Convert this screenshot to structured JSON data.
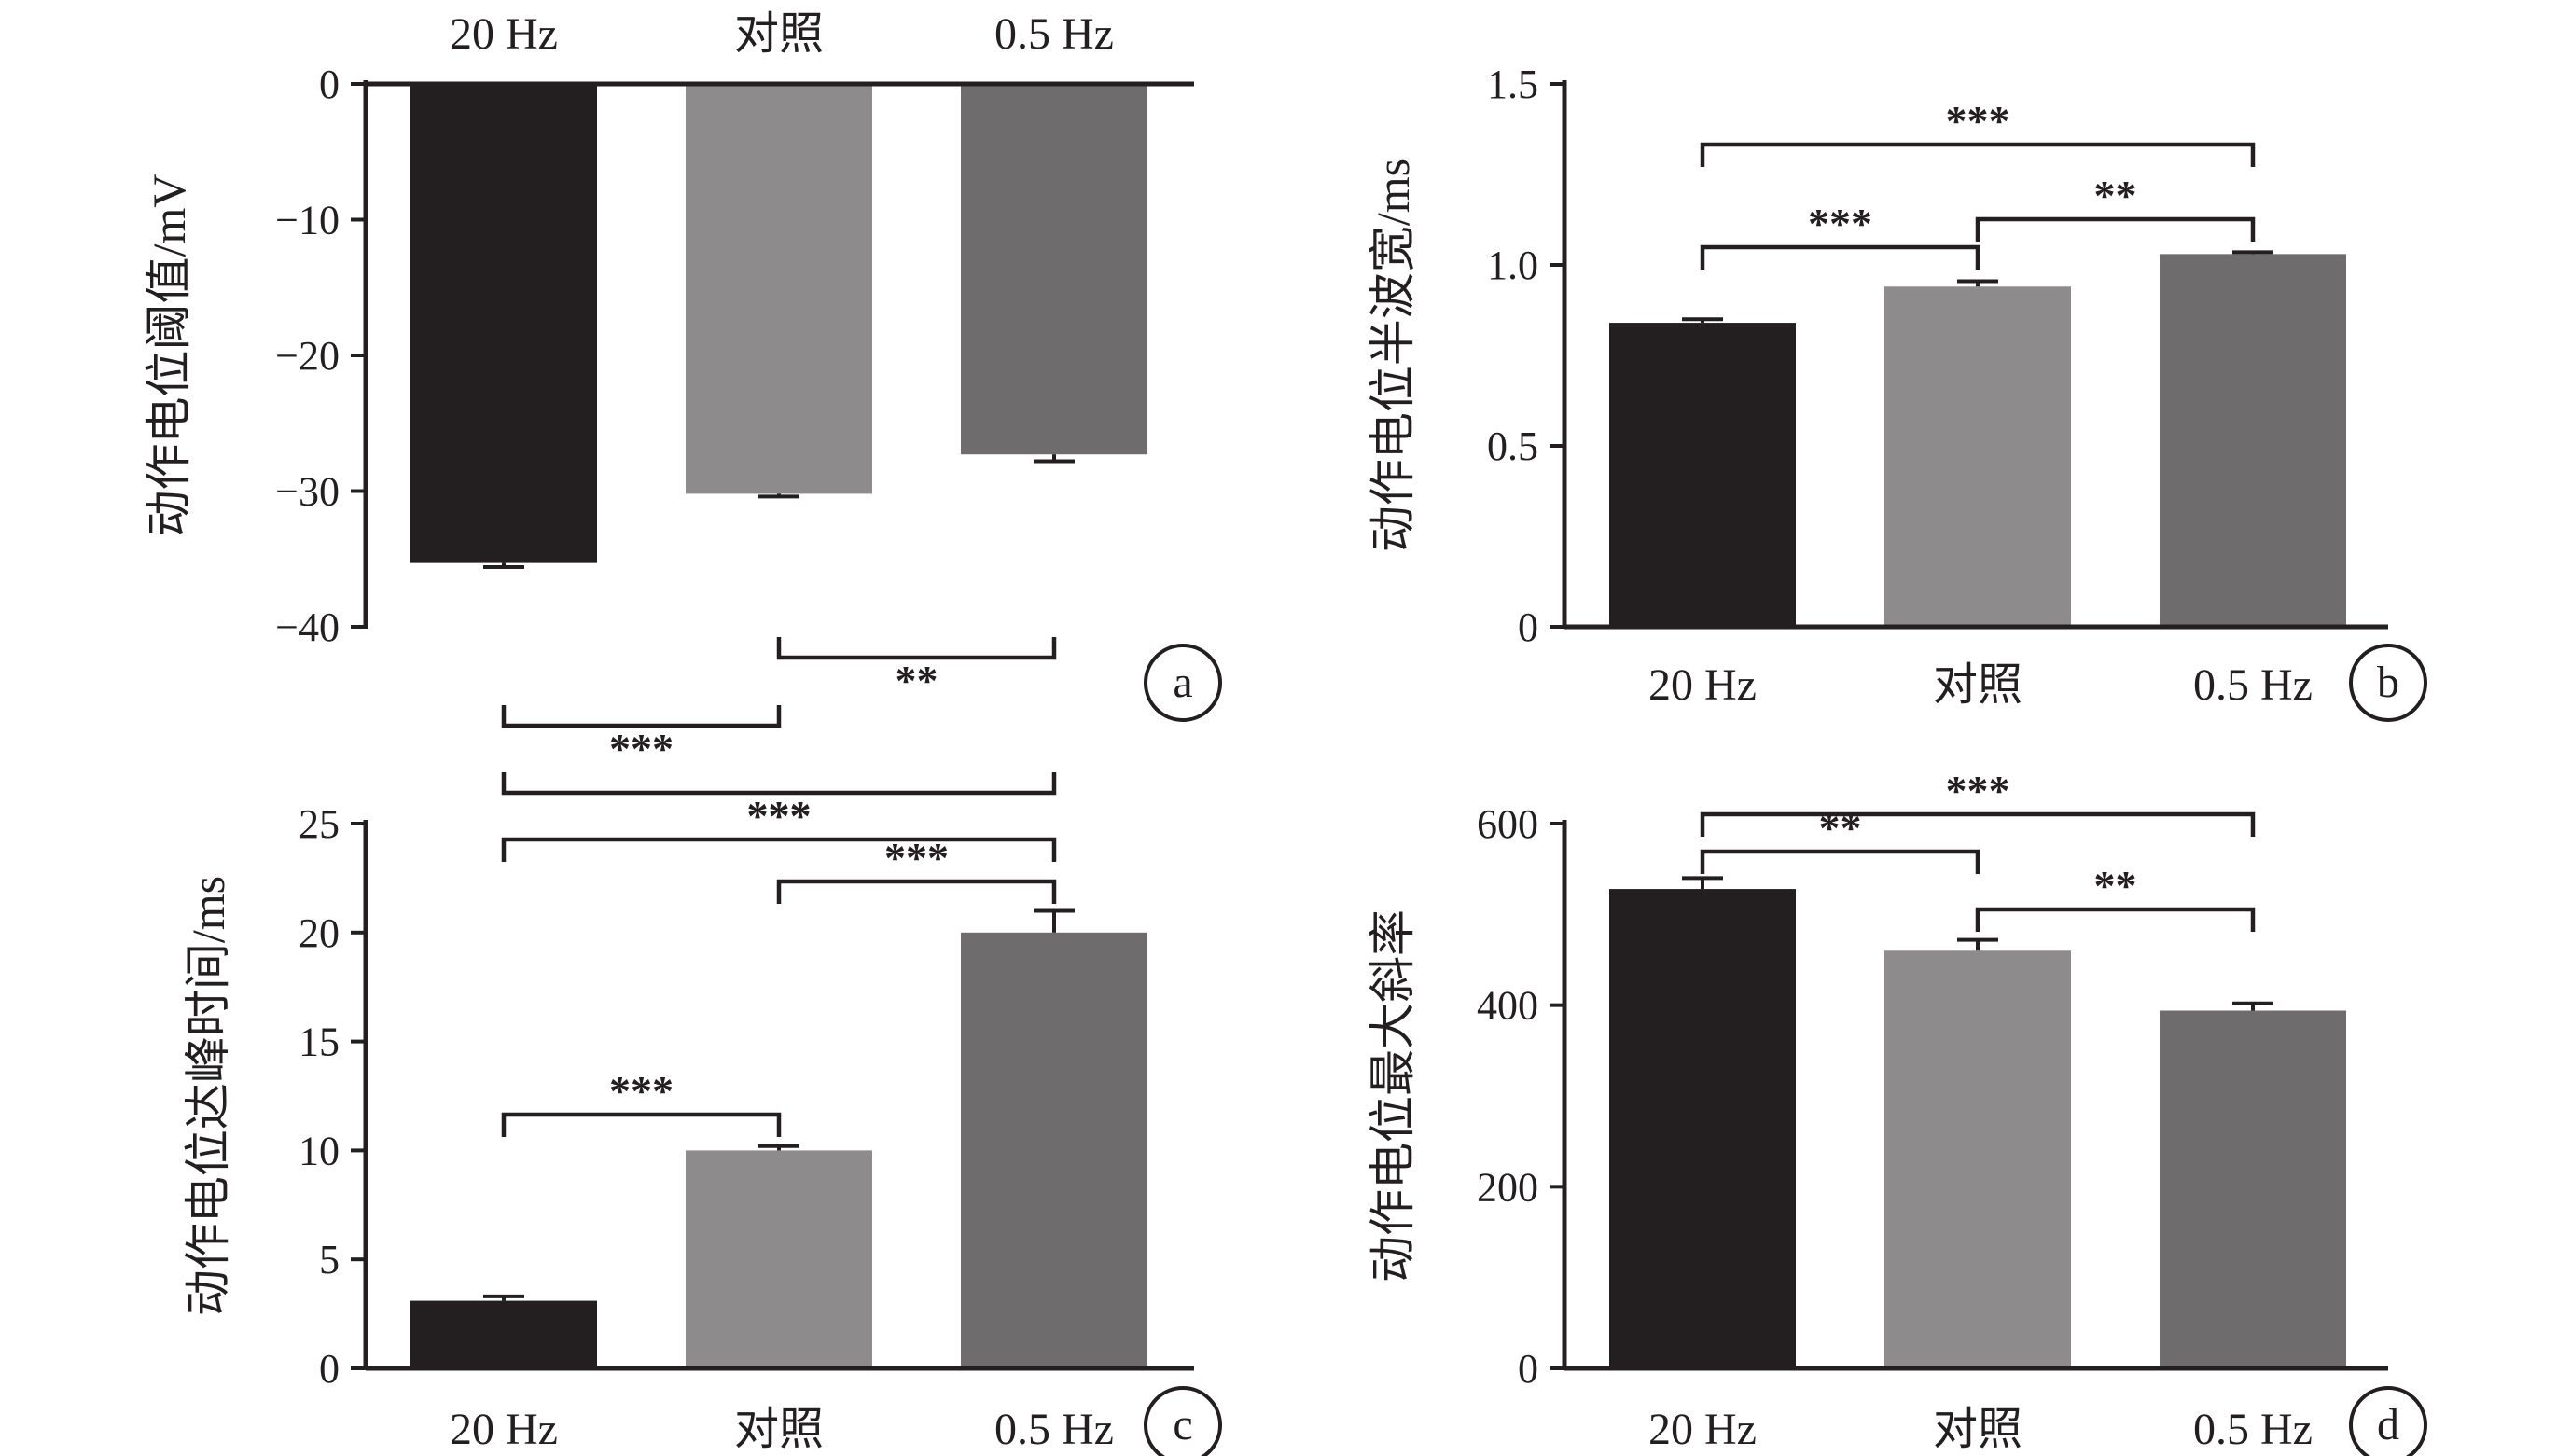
{
  "colors": {
    "20 Hz": "#231f20",
    "对照": "#8d8b8c",
    "0.5 Hz": "#6e6c6d",
    "axis": "#231f20"
  },
  "chart_data": [
    {
      "panel": "a",
      "type": "bar",
      "categories": [
        "20 Hz",
        "对照",
        "0.5 Hz"
      ],
      "values": [
        -35.3,
        -30.2,
        -27.3
      ],
      "errors": [
        0.3,
        0.2,
        0.5
      ],
      "ylabel": "动作电位阈值/mV",
      "ylim": [
        -40,
        0
      ],
      "yticks": [
        0,
        -10,
        -20,
        -30,
        -40
      ],
      "ytick_labels": [
        "0",
        "−10",
        "−20",
        "−30",
        "−40"
      ],
      "category_axis": "top",
      "significance": [
        {
          "from": 1,
          "to": 2,
          "label": "**"
        },
        {
          "from": 0,
          "to": 1,
          "label": "***"
        },
        {
          "from": 0,
          "to": 2,
          "label": "***"
        }
      ]
    },
    {
      "panel": "b",
      "type": "bar",
      "categories": [
        "20 Hz",
        "对照",
        "0.5 Hz"
      ],
      "values": [
        0.84,
        0.94,
        1.03
      ],
      "errors": [
        0.01,
        0.015,
        0.005
      ],
      "ylabel": "动作电位半波宽/ms",
      "ylim": [
        0,
        1.5
      ],
      "yticks": [
        0,
        0.5,
        1.0,
        1.5
      ],
      "ytick_labels": [
        "0",
        "0.5",
        "1.0",
        "1.5"
      ],
      "category_axis": "bottom",
      "significance": [
        {
          "from": 0,
          "to": 2,
          "label": "***"
        },
        {
          "from": 0,
          "to": 1,
          "label": "***"
        },
        {
          "from": 1,
          "to": 2,
          "label": "**"
        }
      ]
    },
    {
      "panel": "c",
      "type": "bar",
      "categories": [
        "20 Hz",
        "对照",
        "0.5 Hz"
      ],
      "values": [
        3.1,
        10.0,
        20.0
      ],
      "errors": [
        0.2,
        0.2,
        1.0
      ],
      "ylabel": "动作电位达峰时间/ms",
      "ylim": [
        0,
        25
      ],
      "yticks": [
        0,
        5,
        10,
        15,
        20,
        25
      ],
      "ytick_labels": [
        "0",
        "5",
        "10",
        "15",
        "20",
        "25"
      ],
      "category_axis": "bottom",
      "significance": [
        {
          "from": 0,
          "to": 2,
          "label": "***"
        },
        {
          "from": 1,
          "to": 2,
          "label": "***"
        },
        {
          "from": 0,
          "to": 1,
          "label": "***"
        }
      ]
    },
    {
      "panel": "d",
      "type": "bar",
      "categories": [
        "20 Hz",
        "对照",
        "0.5 Hz"
      ],
      "values": [
        528,
        460,
        394
      ],
      "errors": [
        12,
        12,
        8
      ],
      "ylabel": "动作电位最大斜率",
      "ylim": [
        0,
        600
      ],
      "yticks": [
        0,
        200,
        400,
        600
      ],
      "ytick_labels": [
        "0",
        "200",
        "400",
        "600"
      ],
      "category_axis": "bottom",
      "significance": [
        {
          "from": 0,
          "to": 2,
          "label": "***"
        },
        {
          "from": 0,
          "to": 1,
          "label": "**"
        },
        {
          "from": 1,
          "to": 2,
          "label": "**"
        }
      ]
    }
  ]
}
